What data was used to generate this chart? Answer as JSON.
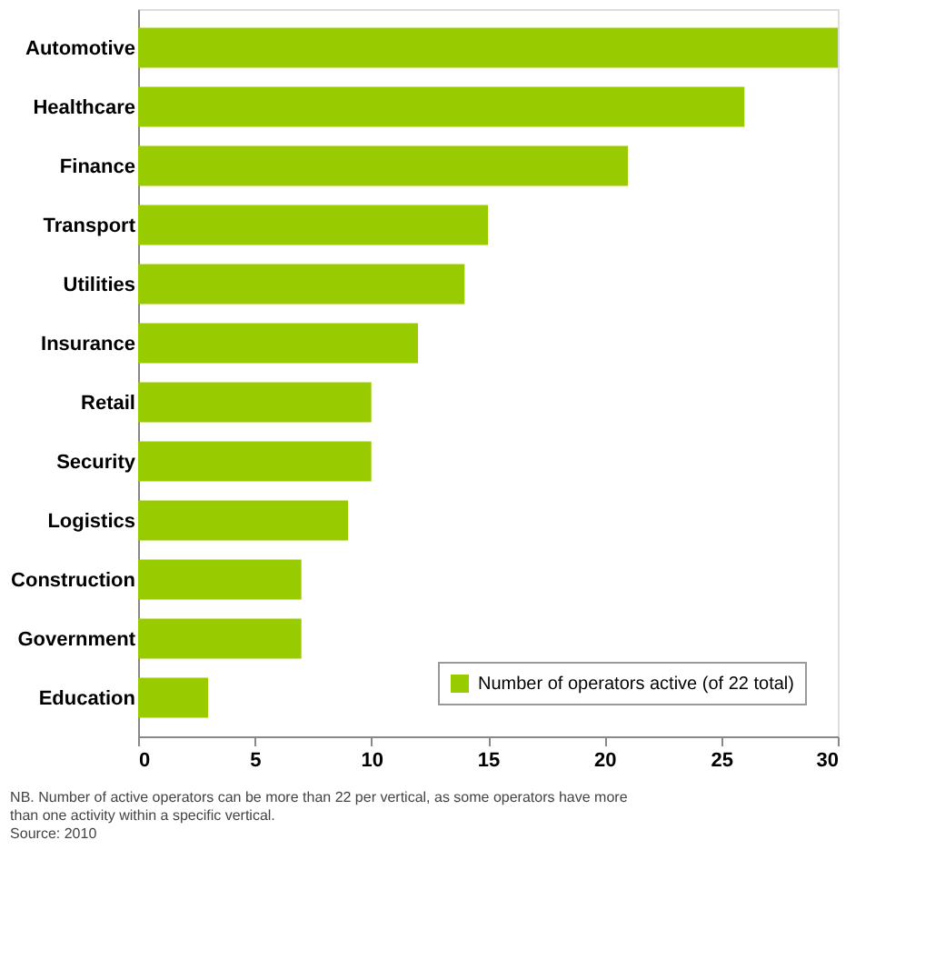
{
  "chart_data": {
    "type": "bar",
    "orientation": "horizontal",
    "categories": [
      "Automotive",
      "Healthcare",
      "Finance",
      "Transport",
      "Utilities",
      "Insurance",
      "Retail",
      "Security",
      "Logistics",
      "Construction",
      "Government",
      "Education"
    ],
    "series": [
      {
        "name": "Number of operators active (of 22 total)",
        "color": "#99cc00",
        "values": [
          30,
          26,
          21,
          15,
          14,
          12,
          10,
          10,
          9,
          7,
          7,
          3
        ]
      }
    ],
    "xlim": [
      0,
      30
    ],
    "xticks": [
      0,
      5,
      10,
      15,
      20,
      25,
      30
    ],
    "grid": false,
    "legend": "bottom right",
    "annotations": [
      "NB. Number of active operators can be more than 22 per vertical, as some operators have more than one activity within a specific vertical.",
      "Source: 2010"
    ]
  }
}
